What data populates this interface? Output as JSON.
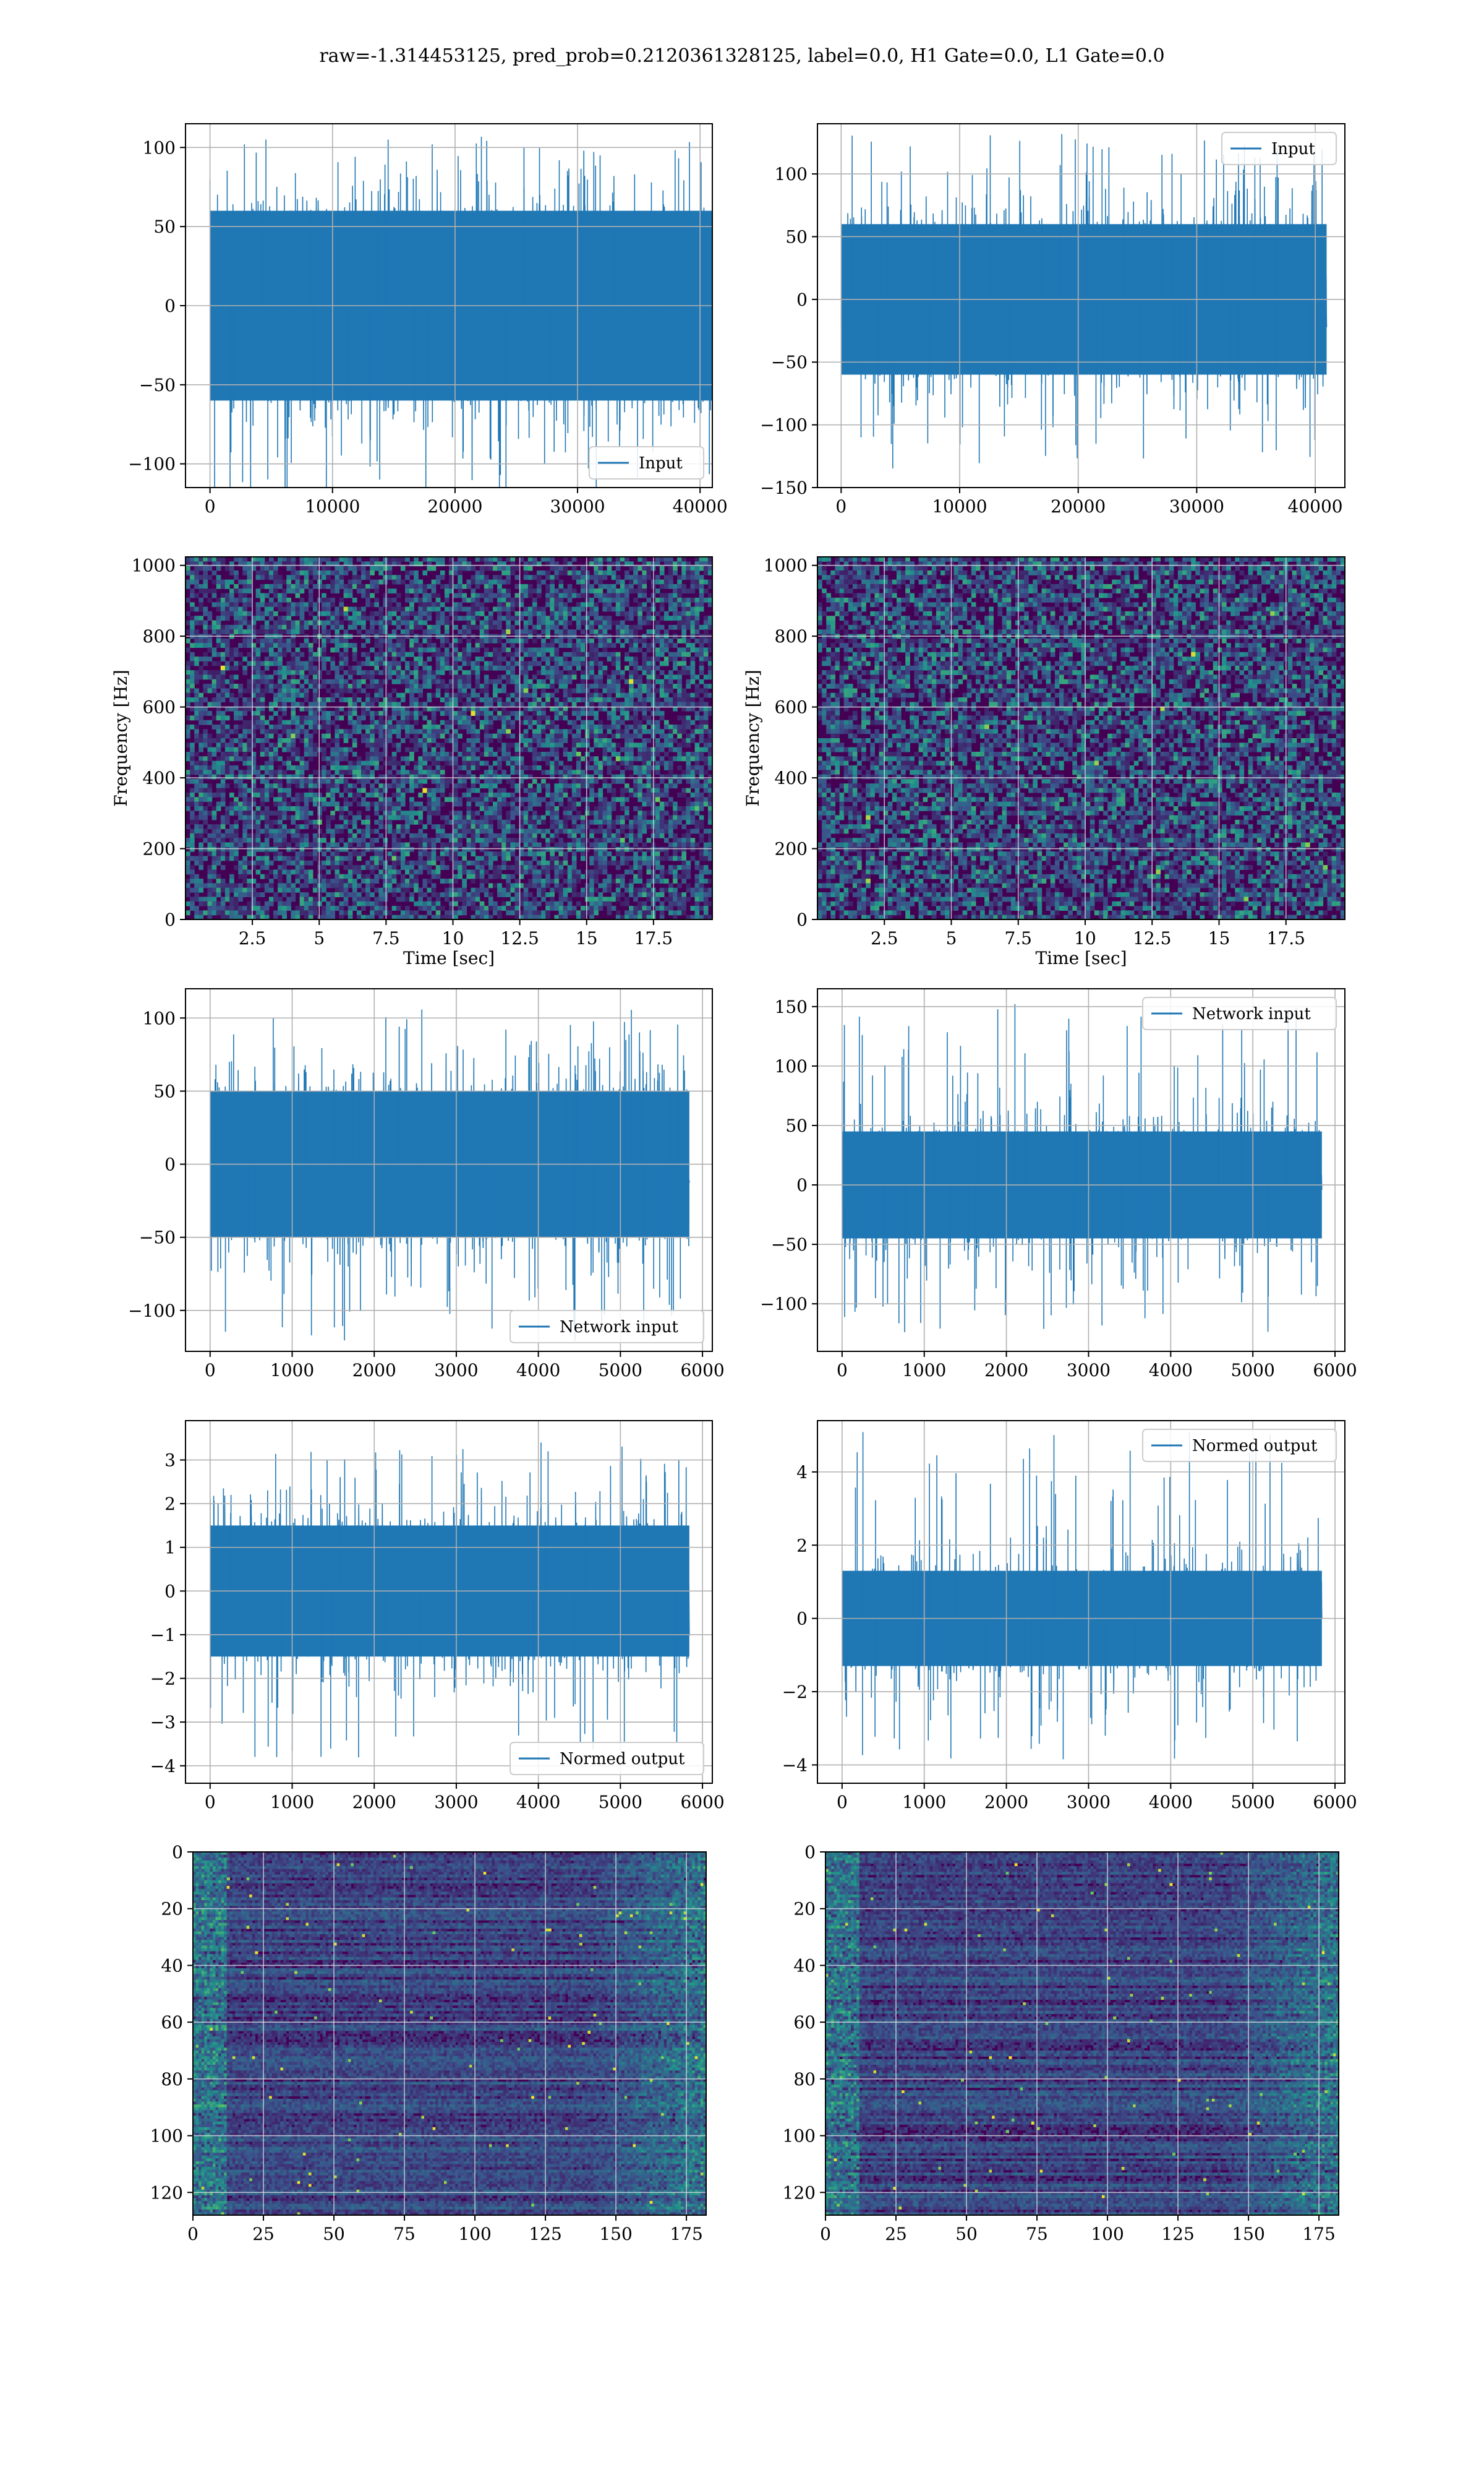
{
  "figure": {
    "title": "raw=-1.314453125, pred_prob=0.2120361328125, label=0.0, H1 Gate=0.0, L1 Gate=0.0",
    "line_color": "#1f77b4"
  },
  "chart_data": [
    {
      "id": "input-h1",
      "type": "line",
      "xlim": [
        -2000,
        41000
      ],
      "ylim": [
        -115,
        115
      ],
      "xticks": [
        0,
        10000,
        20000,
        30000,
        40000
      ],
      "yticks": [
        -100,
        -50,
        0,
        50,
        100
      ],
      "xlabel": "",
      "ylabel": "",
      "grid": true,
      "series": [
        {
          "name": "Input",
          "x_range": [
            0,
            40960
          ],
          "envelope": {
            "core": [
              -60,
              60
            ],
            "peak": [
              -120,
              108
            ]
          }
        }
      ],
      "legend": "lower-right"
    },
    {
      "id": "input-l1",
      "type": "line",
      "xlim": [
        -2000,
        42500
      ],
      "ylim": [
        -150,
        140
      ],
      "xticks": [
        0,
        10000,
        20000,
        30000,
        40000
      ],
      "yticks": [
        -150,
        -100,
        -50,
        0,
        50,
        100
      ],
      "xlabel": "",
      "ylabel": "",
      "grid": true,
      "series": [
        {
          "name": "Input",
          "x_range": [
            0,
            40960
          ],
          "envelope": {
            "core": [
              -60,
              60
            ],
            "peak": [
              -135,
              132
            ]
          }
        }
      ],
      "legend": "upper-right"
    },
    {
      "id": "spec-h1",
      "type": "heatmap",
      "xlim": [
        0,
        19.7
      ],
      "ylim": [
        0,
        1024
      ],
      "xticks": [
        2.5,
        5.0,
        7.5,
        10.0,
        12.5,
        15.0,
        17.5
      ],
      "yticks": [
        0,
        200,
        400,
        600,
        800,
        1000
      ],
      "xlabel": "Time [sec]",
      "ylabel": "Frequency [Hz]",
      "grid": true,
      "colormap": "viridis"
    },
    {
      "id": "spec-l1",
      "type": "heatmap",
      "xlim": [
        0,
        19.7
      ],
      "ylim": [
        0,
        1024
      ],
      "xticks": [
        2.5,
        5.0,
        7.5,
        10.0,
        12.5,
        15.0,
        17.5
      ],
      "yticks": [
        0,
        200,
        400,
        600,
        800,
        1000
      ],
      "xlabel": "Time [sec]",
      "ylabel": "Frequency [Hz]",
      "grid": true,
      "colormap": "viridis"
    },
    {
      "id": "net-h1",
      "type": "line",
      "xlim": [
        -300,
        6120
      ],
      "ylim": [
        -128,
        120
      ],
      "xticks": [
        0,
        1000,
        2000,
        3000,
        4000,
        5000,
        6000
      ],
      "yticks": [
        -100,
        -50,
        0,
        50,
        100
      ],
      "xlabel": "",
      "ylabel": "",
      "grid": true,
      "series": [
        {
          "name": "Network input",
          "x_range": [
            0,
            5840
          ],
          "envelope": {
            "core": [
              -50,
              50
            ],
            "peak": [
              -122,
              106
            ]
          }
        }
      ],
      "legend": "lower-right"
    },
    {
      "id": "net-l1",
      "type": "line",
      "xlim": [
        -300,
        6120
      ],
      "ylim": [
        -140,
        165
      ],
      "xticks": [
        0,
        1000,
        2000,
        3000,
        4000,
        5000,
        6000
      ],
      "yticks": [
        -100,
        -50,
        0,
        50,
        100,
        150
      ],
      "xlabel": "",
      "ylabel": "",
      "grid": true,
      "series": [
        {
          "name": "Network input",
          "x_range": [
            0,
            5840
          ],
          "envelope": {
            "core": [
              -45,
              45
            ],
            "peak": [
              -125,
              155
            ]
          }
        }
      ],
      "legend": "upper-right"
    },
    {
      "id": "norm-h1",
      "type": "line",
      "xlim": [
        -300,
        6120
      ],
      "ylim": [
        -4.4,
        3.9
      ],
      "xticks": [
        0,
        1000,
        2000,
        3000,
        4000,
        5000,
        6000
      ],
      "yticks": [
        -4,
        -3,
        -2,
        -1,
        0,
        1,
        2,
        3
      ],
      "xlabel": "",
      "ylabel": "",
      "grid": true,
      "series": [
        {
          "name": "Normed output",
          "x_range": [
            0,
            5840
          ],
          "envelope": {
            "core": [
              -1.5,
              1.5
            ],
            "peak": [
              -3.9,
              3.5
            ]
          }
        }
      ],
      "legend": "lower-right"
    },
    {
      "id": "norm-l1",
      "type": "line",
      "xlim": [
        -300,
        6120
      ],
      "ylim": [
        -4.5,
        5.4
      ],
      "xticks": [
        0,
        1000,
        2000,
        3000,
        4000,
        5000,
        6000
      ],
      "yticks": [
        -4,
        -2,
        0,
        2,
        4
      ],
      "xlabel": "",
      "ylabel": "",
      "grid": true,
      "series": [
        {
          "name": "Normed output",
          "x_range": [
            0,
            5840
          ],
          "envelope": {
            "core": [
              -1.3,
              1.3
            ],
            "peak": [
              -4.0,
              5.1
            ]
          }
        }
      ],
      "legend": "upper-right"
    },
    {
      "id": "feat-h1",
      "type": "heatmap",
      "xlim": [
        0,
        182
      ],
      "ylim": [
        128,
        0
      ],
      "xticks": [
        0,
        25,
        50,
        75,
        100,
        125,
        150,
        175
      ],
      "yticks": [
        0,
        20,
        40,
        60,
        80,
        100,
        120
      ],
      "xlabel": "",
      "ylabel": "",
      "grid": true,
      "colormap": "viridis"
    },
    {
      "id": "feat-l1",
      "type": "heatmap",
      "xlim": [
        0,
        182
      ],
      "ylim": [
        128,
        0
      ],
      "xticks": [
        0,
        25,
        50,
        75,
        100,
        125,
        150,
        175
      ],
      "yticks": [
        0,
        20,
        40,
        60,
        80,
        100,
        120
      ],
      "xlabel": "",
      "ylabel": "",
      "grid": true,
      "colormap": "viridis"
    }
  ]
}
